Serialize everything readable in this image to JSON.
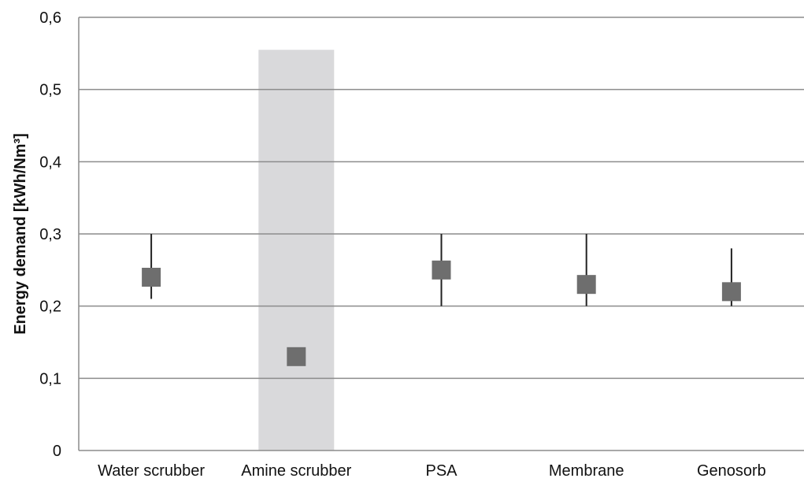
{
  "chart_data": {
    "type": "scatter",
    "title": "",
    "xlabel": "",
    "ylabel": "Energy demand [kWh/Nm³]",
    "categories": [
      "Water scrubber",
      "Amine scrubber",
      "PSA",
      "Membrane",
      "Genosorb"
    ],
    "values": [
      0.24,
      0.13,
      0.25,
      0.23,
      0.22
    ],
    "ranges": [
      [
        0.21,
        0.3
      ],
      null,
      [
        0.2,
        0.3
      ],
      [
        0.2,
        0.3
      ],
      [
        0.2,
        0.28
      ]
    ],
    "shaded_range": [
      0,
      0.555
    ],
    "shaded_category": "Amine scrubber",
    "ylim": [
      0,
      0.6
    ],
    "yticks": [
      0,
      0.1,
      0.2,
      0.3,
      0.4,
      0.5,
      0.6
    ],
    "ytick_labels": [
      "0",
      "0,1",
      "0,2",
      "0,3",
      "0,4",
      "0,5",
      "0,6"
    ],
    "grid": true,
    "legend": "none",
    "colors": {
      "marker": "#6e6e6e",
      "grid": "#8c8c8c",
      "range_line": "#222222",
      "shade": "#d9d9db"
    }
  }
}
